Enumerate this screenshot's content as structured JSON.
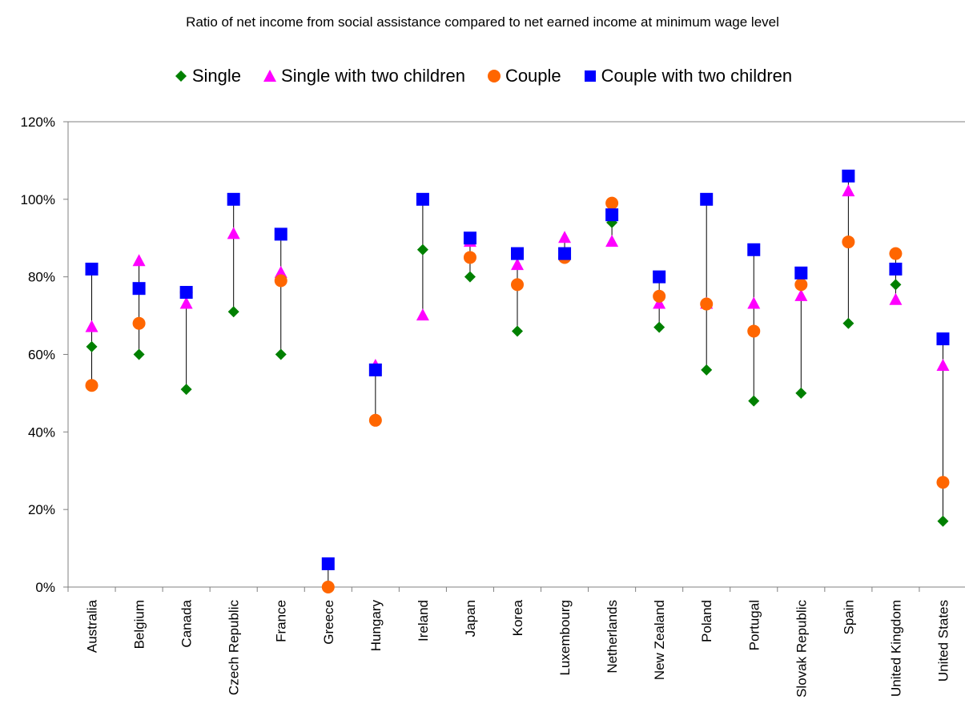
{
  "chart_data": {
    "type": "scatter",
    "title": "Ratio of net income from social assistance compared to net earned income at minimum wage level",
    "xlabel": "",
    "ylabel": "",
    "ylim": [
      0,
      1.2
    ],
    "yticks": [
      "0%",
      "20%",
      "40%",
      "60%",
      "80%",
      "100%",
      "120%"
    ],
    "legend_position": "top",
    "grid": false,
    "categories": [
      "Australia",
      "Belgium",
      "Canada",
      "Czech Republic",
      "France",
      "Greece",
      "Hungary",
      "Ireland",
      "Japan",
      "Korea",
      "Luxembourg",
      "Netherlands",
      "New Zealand",
      "Poland",
      "Portugal",
      "Slovak Republic",
      "Spain",
      "United Kingdom",
      "United States"
    ],
    "series": [
      {
        "name": "Single",
        "marker": "diamond",
        "color": "#008000",
        "values": [
          0.62,
          0.6,
          0.51,
          0.71,
          0.6,
          null,
          null,
          0.87,
          0.8,
          0.66,
          null,
          0.94,
          0.67,
          0.56,
          0.48,
          0.5,
          0.68,
          0.78,
          0.17
        ]
      },
      {
        "name": "Single with two children",
        "marker": "triangle",
        "color": "#FF00FF",
        "values": [
          0.67,
          0.84,
          0.73,
          0.91,
          0.81,
          null,
          0.57,
          0.7,
          0.89,
          0.83,
          0.9,
          0.89,
          0.73,
          0.73,
          0.73,
          0.75,
          1.02,
          0.74,
          0.57
        ]
      },
      {
        "name": "Couple",
        "marker": "circle",
        "color": "#FF6600",
        "values": [
          0.52,
          0.68,
          0.76,
          null,
          0.79,
          0.0,
          0.43,
          null,
          0.85,
          0.78,
          0.85,
          0.99,
          0.75,
          0.73,
          0.66,
          0.78,
          0.89,
          0.86,
          0.27
        ]
      },
      {
        "name": "Couple with two children",
        "marker": "square",
        "color": "#0000FF",
        "values": [
          0.82,
          0.77,
          0.76,
          1.0,
          0.91,
          0.06,
          0.56,
          1.0,
          0.9,
          0.86,
          0.86,
          0.96,
          0.8,
          1.0,
          0.87,
          0.81,
          1.06,
          0.82,
          0.64
        ]
      }
    ]
  }
}
